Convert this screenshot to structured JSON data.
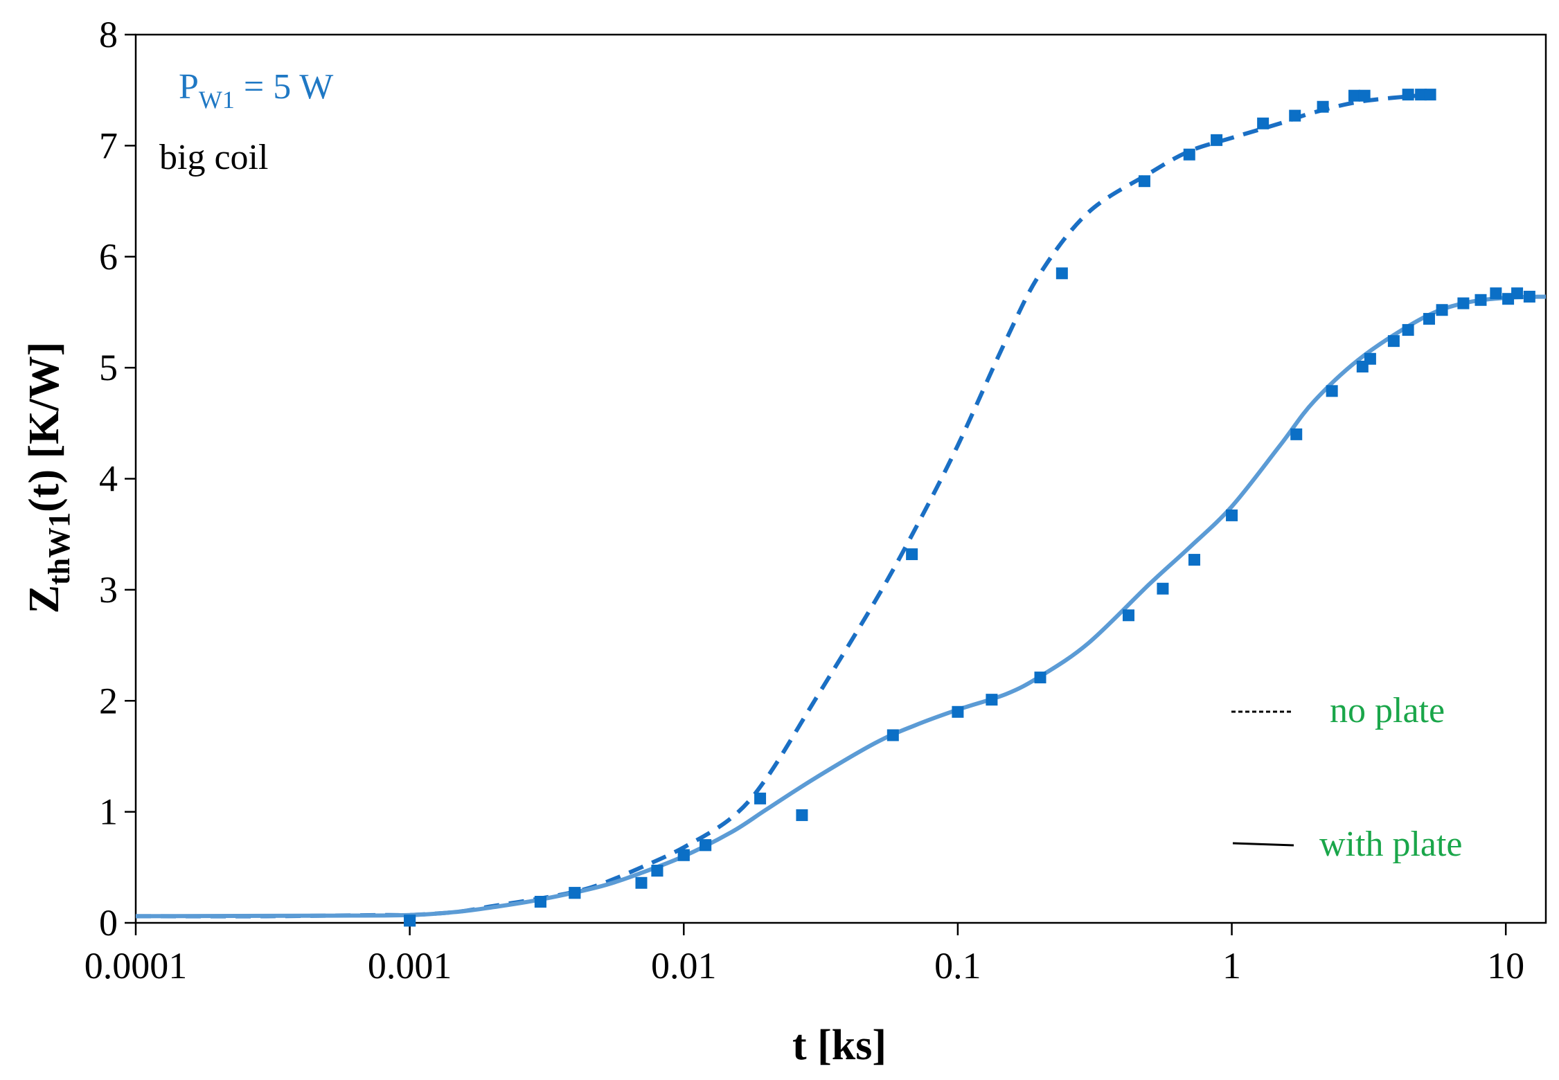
{
  "chart_data": {
    "type": "line",
    "title": "",
    "xlabel": "t [ks]",
    "ylabel": {
      "main": "Z",
      "sub": "thW1",
      "rest": "(t) [K/W]"
    },
    "x_scale": "log",
    "xlim": [
      0.0001,
      14
    ],
    "ylim": [
      0,
      8
    ],
    "x_ticks": [
      0.0001,
      0.001,
      0.01,
      0.1,
      1,
      10
    ],
    "x_tick_labels": [
      "0.0001",
      "0.001",
      "0.01",
      "0.1",
      "1",
      "10"
    ],
    "y_ticks": [
      0,
      1,
      2,
      3,
      4,
      5,
      6,
      7,
      8
    ],
    "y_tick_labels": [
      "0",
      "1",
      "2",
      "3",
      "4",
      "5",
      "6",
      "7",
      "8"
    ],
    "grid": false,
    "annotations": {
      "power": {
        "main": "P",
        "sub": "W1",
        "rest": " = 5 W"
      },
      "coil": "big coil"
    },
    "legend": {
      "position": "bottom-right",
      "entries": [
        {
          "label": "no plate",
          "style": "dashed"
        },
        {
          "label": "with plate",
          "style": "solid"
        }
      ]
    },
    "colors": {
      "no_plate_line": "#1a6fc4",
      "with_plate_line": "#5b9bd5",
      "markers": "#0b6fc6",
      "power_text": "#1f78c4",
      "legend_text": "#1aa64a",
      "axis": "#000000"
    },
    "series": [
      {
        "name": "no plate",
        "style": "dashed",
        "line": {
          "x": [
            0.0001,
            0.0003,
            0.0008,
            0.001,
            0.0015,
            0.002,
            0.003,
            0.004,
            0.005,
            0.007,
            0.01,
            0.015,
            0.02,
            0.03,
            0.05,
            0.07,
            0.1,
            0.15,
            0.2,
            0.3,
            0.5,
            0.7,
            1,
            1.5,
            2,
            3,
            5.3
          ],
          "y": [
            0.06,
            0.06,
            0.07,
            0.07,
            0.1,
            0.15,
            0.22,
            0.28,
            0.35,
            0.5,
            0.68,
            0.95,
            1.3,
            2.0,
            2.9,
            3.55,
            4.3,
            5.25,
            5.85,
            6.4,
            6.75,
            6.95,
            7.07,
            7.2,
            7.3,
            7.4,
            7.46
          ]
        },
        "markers": {
          "x": [
            0.001,
            0.003,
            0.004,
            0.007,
            0.008,
            0.01,
            0.012,
            0.019,
            0.068,
            0.24,
            0.48,
            0.7,
            0.88,
            1.3,
            1.7,
            2.15,
            2.8,
            3.05,
            4.4,
            4.9,
            5.3
          ],
          "y": [
            0.02,
            0.19,
            0.27,
            0.36,
            0.47,
            0.61,
            0.7,
            1.12,
            3.32,
            5.85,
            6.68,
            6.92,
            7.05,
            7.2,
            7.27,
            7.35,
            7.45,
            7.45,
            7.46,
            7.46,
            7.46
          ]
        }
      },
      {
        "name": "with plate",
        "style": "solid",
        "line": {
          "x": [
            0.0001,
            0.0005,
            0.001,
            0.0015,
            0.002,
            0.003,
            0.005,
            0.007,
            0.01,
            0.015,
            0.02,
            0.03,
            0.05,
            0.07,
            0.1,
            0.15,
            0.2,
            0.3,
            0.5,
            0.7,
            1,
            1.5,
            2,
            3,
            5,
            7,
            10,
            14
          ],
          "y": [
            0.06,
            0.065,
            0.07,
            0.1,
            0.14,
            0.21,
            0.33,
            0.45,
            0.6,
            0.82,
            1.02,
            1.3,
            1.62,
            1.78,
            1.92,
            2.06,
            2.22,
            2.52,
            3.05,
            3.38,
            3.75,
            4.3,
            4.7,
            5.1,
            5.45,
            5.58,
            5.63,
            5.64
          ]
        },
        "markers": {
          "x": [
            0.001,
            0.003,
            0.004,
            0.008,
            0.01,
            0.012,
            0.027,
            0.058,
            0.1,
            0.133,
            0.2,
            0.42,
            0.56,
            0.73,
            1.0,
            1.72,
            2.32,
            3.0,
            3.2,
            3.9,
            4.4,
            5.25,
            5.85,
            7.0,
            8.1,
            9.2,
            10.2,
            11.0,
            12.2
          ],
          "y": [
            0.02,
            0.19,
            0.27,
            0.47,
            0.61,
            0.7,
            0.97,
            1.69,
            1.9,
            2.01,
            2.21,
            2.77,
            3.01,
            3.27,
            3.67,
            4.4,
            4.79,
            5.01,
            5.08,
            5.24,
            5.34,
            5.44,
            5.52,
            5.58,
            5.61,
            5.67,
            5.62,
            5.67,
            5.64
          ]
        }
      }
    ]
  }
}
